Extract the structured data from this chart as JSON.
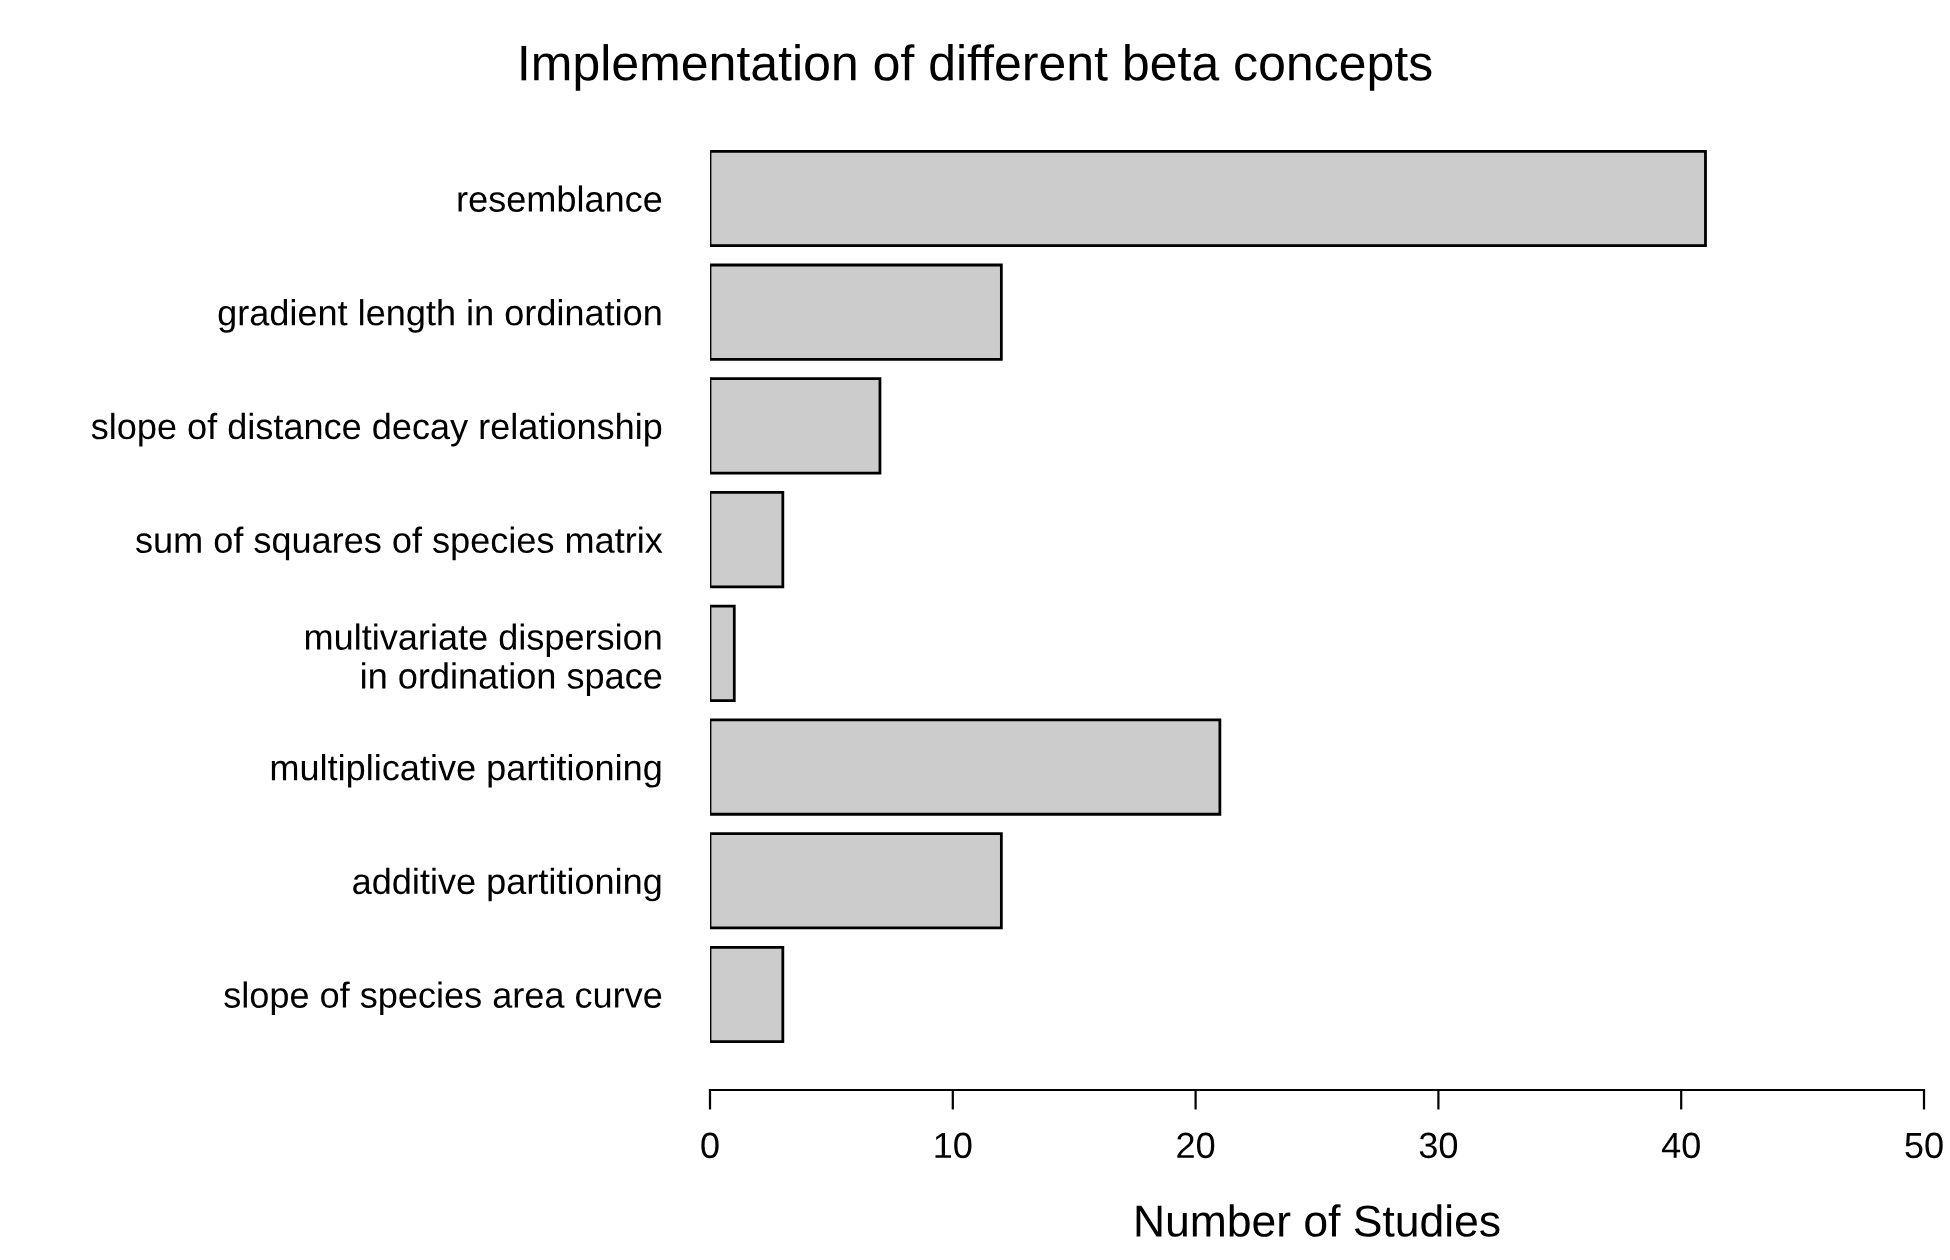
{
  "chart_data": {
    "type": "bar",
    "orientation": "horizontal",
    "title": "Implementation of different beta concepts",
    "xlabel": "Number of Studies",
    "categories": [
      "resemblance",
      "gradient length in ordination",
      "slope of distance decay relationship",
      "sum of squares of species matrix",
      "multivariate dispersion\nin ordination space",
      "multiplicative partitioning",
      "additive partitioning",
      "slope of species area curve"
    ],
    "values": [
      41,
      12,
      7,
      3,
      1,
      21,
      12,
      3
    ],
    "color": "#cccccc",
    "xlim": [
      0,
      50
    ],
    "xticks": [
      0,
      10,
      20,
      30,
      40,
      50
    ],
    "grid": false
  }
}
